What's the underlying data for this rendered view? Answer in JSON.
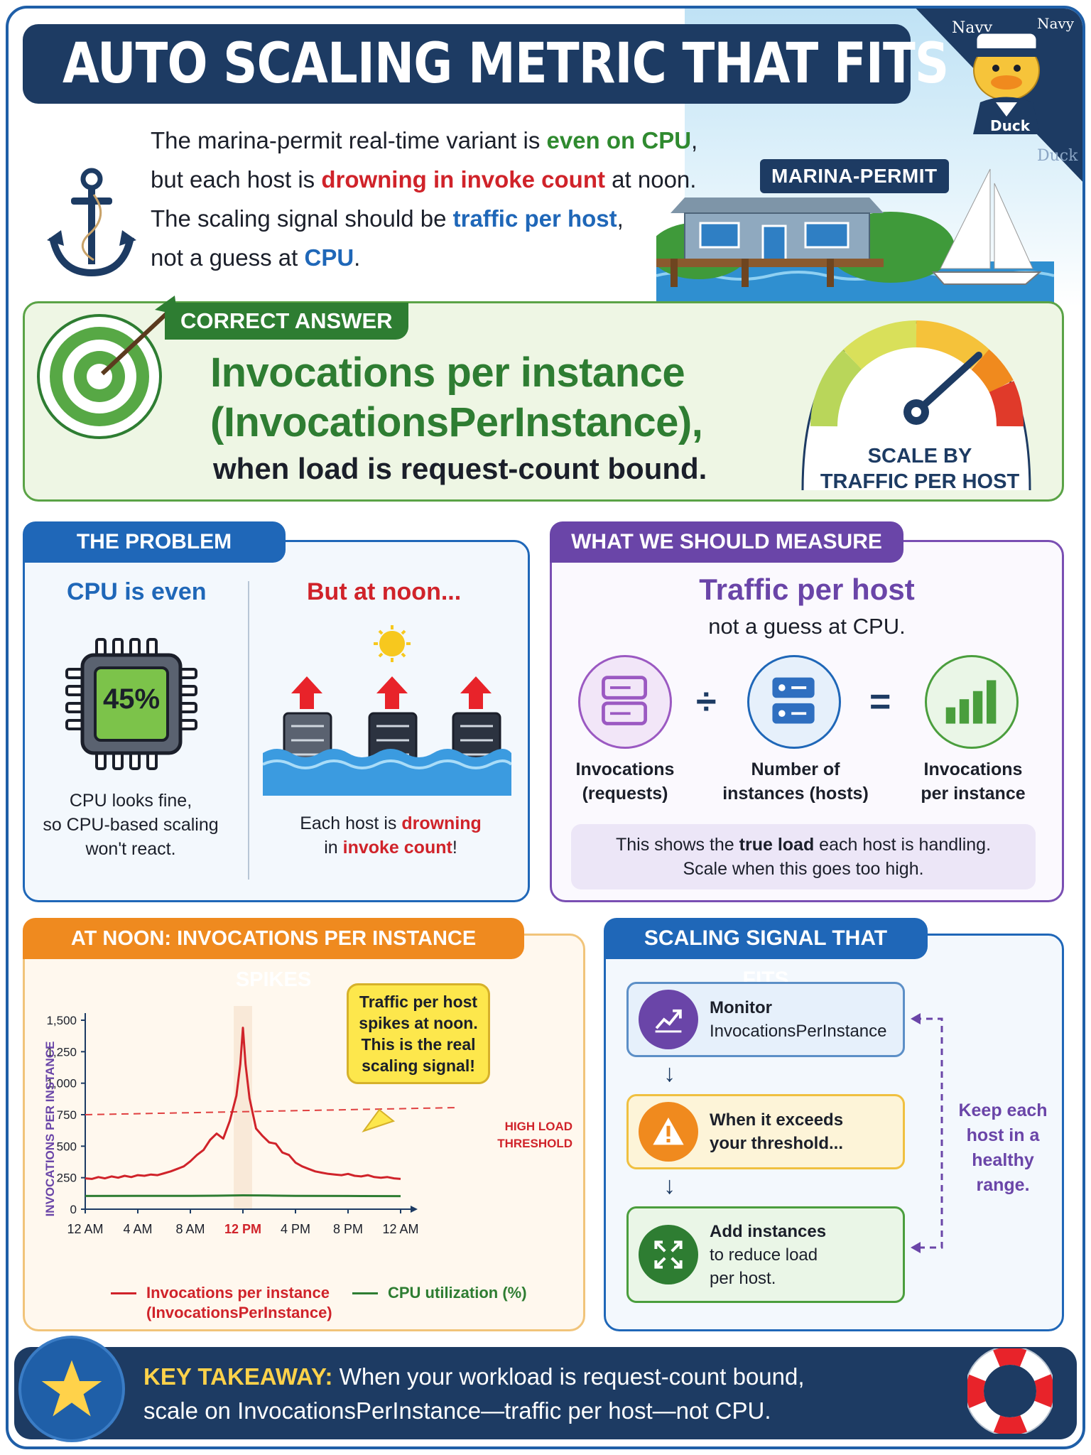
{
  "header": {
    "title": "AUTO SCALING METRIC THAT FITS"
  },
  "mascot": {
    "cap_text_1": "Navy",
    "cap_text_2": "Navy",
    "shirt_text": "Duck",
    "side_text": "Duck"
  },
  "intro": {
    "l1_a": "The marina-permit real-time variant is ",
    "l1_b": "even on CPU",
    "l1_c": ",",
    "l2_a": "but each host is ",
    "l2_b": "drowning in invoke count",
    "l2_c": " at noon.",
    "l3_a": "The scaling signal should be ",
    "l3_b": "traffic per host",
    "l3_c": ",",
    "l4_a": "not a guess at ",
    "l4_b": "CPU",
    "l4_c": "."
  },
  "building": {
    "label": "MARINA-PERMIT"
  },
  "answer": {
    "tag": "CORRECT ANSWER",
    "line1": "Invocations per instance",
    "line2": "(InvocationsPerInstance),",
    "sub": "when load is request-count bound.",
    "gauge_label_1": "SCALE BY",
    "gauge_label_2": "TRAFFIC PER HOST"
  },
  "problem": {
    "tab": "THE PROBLEM",
    "left_head": "CPU is even",
    "chip_value": "45%",
    "left_cap_1": "CPU looks fine,",
    "left_cap_2": "so CPU-based scaling",
    "left_cap_3": "won't react.",
    "right_head": "But at noon...",
    "right_cap_a": "Each host is ",
    "right_cap_b": "drowning",
    "right_cap_c": "in ",
    "right_cap_d": "invoke count",
    "right_cap_e": "!"
  },
  "measure": {
    "tab": "WHAT WE SHOULD MEASURE",
    "title": "Traffic per host",
    "subtitle": "not a guess at CPU.",
    "op_divide": "÷",
    "op_equals": "=",
    "c1_l1": "Invocations",
    "c1_l2": "(requests)",
    "c2_l1": "Number of",
    "c2_l2": "instances (hosts)",
    "c3_l1": "Invocations",
    "c3_l2": "per instance",
    "note_a": "This shows the ",
    "note_b": "true load",
    "note_c": " each host is handling.",
    "note_d": "Scale when this goes too high."
  },
  "chart": {
    "tab": "AT NOON: INVOCATIONS PER INSTANCE SPIKES",
    "callout": "Traffic per host spikes at noon. This is the real scaling signal!",
    "threshold_1": "HIGH LOAD",
    "threshold_2": "THRESHOLD",
    "legend_1a": "Invocations per instance",
    "legend_1b": "(InvocationsPerInstance)",
    "legend_2": "CPU utilization (%)",
    "colors": {
      "invocations": "#d0232a",
      "cpu": "#2e7d32",
      "threshold": "#e04040",
      "axis_label": "#6a45a8"
    }
  },
  "chart_data": {
    "type": "line",
    "title": "AT NOON: INVOCATIONS PER INSTANCE SPIKES",
    "xlabel": "",
    "ylabel": "INVOCATIONS PER INSTANCE",
    "x_ticks": [
      "12 AM",
      "4 AM",
      "8 AM",
      "12 PM",
      "4 PM",
      "8 PM",
      "12 AM"
    ],
    "highlight_tick": "12 PM",
    "y_ticks": [
      "0",
      "250",
      "500",
      "750",
      "1,000",
      "1,250",
      "1,500"
    ],
    "ylim": [
      0,
      1500
    ],
    "xlim_hours": [
      0,
      24
    ],
    "threshold": 750,
    "series": [
      {
        "name": "Invocations per instance (InvocationsPerInstance)",
        "x": [
          0,
          0.5,
          1,
          1.5,
          2,
          2.5,
          3,
          3.5,
          4,
          4.5,
          5,
          5.5,
          6,
          6.5,
          7,
          7.5,
          8,
          8.5,
          9,
          9.5,
          10,
          10.5,
          11,
          11.5,
          11.8,
          12,
          12.2,
          12.5,
          13,
          13.5,
          14,
          14.5,
          15,
          15.5,
          16,
          16.5,
          17,
          17.5,
          18,
          18.5,
          19,
          19.5,
          20,
          20.5,
          21,
          21.5,
          22,
          22.5,
          23,
          23.5,
          24
        ],
        "values": [
          245,
          240,
          255,
          245,
          260,
          250,
          265,
          255,
          270,
          265,
          275,
          270,
          285,
          300,
          320,
          340,
          380,
          430,
          470,
          550,
          600,
          560,
          700,
          900,
          1150,
          1440,
          1150,
          880,
          640,
          580,
          530,
          520,
          450,
          430,
          370,
          340,
          320,
          300,
          290,
          280,
          275,
          270,
          280,
          265,
          260,
          270,
          255,
          250,
          255,
          245,
          240
        ]
      },
      {
        "name": "CPU utilization (%)",
        "x": [
          0,
          4,
          8,
          10,
          12,
          14,
          16,
          20,
          24
        ],
        "values": [
          105,
          106,
          106,
          107,
          110,
          108,
          106,
          105,
          104
        ]
      }
    ],
    "legend": "bottom",
    "grid": false
  },
  "signal": {
    "tab": "SCALING SIGNAL THAT FITS",
    "s1_b": "Monitor",
    "s1_t": "InvocationsPerInstance",
    "s2_b": "When it exceeds",
    "s2_t": "your threshold...",
    "s3_b": "Add instances",
    "s3_t1": "to reduce load",
    "s3_t2": "per host.",
    "arrow": "↓",
    "keep": "Keep each host in a healthy range."
  },
  "takeaway": {
    "label": "KEY TAKEAWAY:",
    "line1": " When your workload is request-count bound,",
    "line2": "scale on InvocationsPerInstance—traffic per host—not CPU."
  }
}
